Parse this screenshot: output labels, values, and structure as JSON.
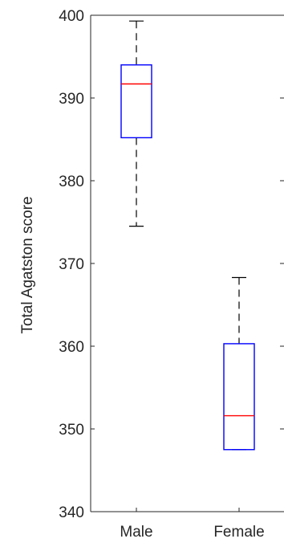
{
  "chart_data": {
    "type": "boxplot",
    "title": "",
    "xlabel": "",
    "ylabel": "Total Agatston score",
    "ylim": [
      340,
      400
    ],
    "yticks": [
      340,
      350,
      360,
      370,
      380,
      390,
      400
    ],
    "grid": false,
    "categories": [
      "Male",
      "Female"
    ],
    "boxes": [
      {
        "category": "Male",
        "whisker_low": 374.5,
        "q1": 385.2,
        "median": 391.7,
        "q3": 394.0,
        "whisker_high": 399.3
      },
      {
        "category": "Female",
        "whisker_low": 347.5,
        "q1": 347.5,
        "median": 351.6,
        "q3": 360.3,
        "whisker_high": 368.3
      }
    ],
    "colors": {
      "box": "#0000ff",
      "median": "#ff0000",
      "whisker": "#000000",
      "axis": "#262626"
    }
  }
}
